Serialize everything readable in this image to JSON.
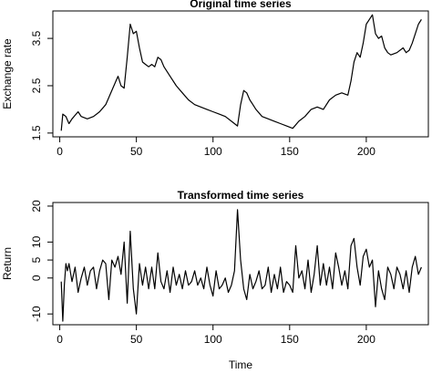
{
  "chart_data": [
    {
      "type": "line",
      "title": "Original time series",
      "ylabel": "Exchange rate",
      "color": "#000000",
      "x": [
        1,
        2,
        4,
        6,
        8,
        12,
        14,
        18,
        22,
        26,
        30,
        34,
        38,
        40,
        42,
        44,
        46,
        48,
        50,
        52,
        54,
        56,
        58,
        60,
        62,
        64,
        66,
        68,
        72,
        76,
        80,
        84,
        88,
        92,
        96,
        100,
        104,
        108,
        112,
        116,
        118,
        120,
        122,
        124,
        126,
        128,
        132,
        136,
        140,
        144,
        148,
        152,
        156,
        160,
        164,
        168,
        172,
        176,
        180,
        184,
        188,
        190,
        192,
        194,
        196,
        198,
        200,
        202,
        204,
        206,
        208,
        210,
        212,
        214,
        216,
        220,
        224,
        226,
        228,
        230,
        232,
        234,
        236
      ],
      "values": [
        1.55,
        1.9,
        1.85,
        1.7,
        1.8,
        1.95,
        1.85,
        1.8,
        1.85,
        1.95,
        2.1,
        2.4,
        2.7,
        2.5,
        2.45,
        3.1,
        3.8,
        3.6,
        3.65,
        3.3,
        3.0,
        2.95,
        2.9,
        2.95,
        2.9,
        3.1,
        3.05,
        2.9,
        2.7,
        2.5,
        2.35,
        2.2,
        2.1,
        2.05,
        2.0,
        1.95,
        1.9,
        1.85,
        1.75,
        1.65,
        2.1,
        2.4,
        2.35,
        2.2,
        2.1,
        2.0,
        1.85,
        1.8,
        1.75,
        1.7,
        1.65,
        1.6,
        1.75,
        1.85,
        2.0,
        2.05,
        2.0,
        2.2,
        2.3,
        2.35,
        2.3,
        2.6,
        3.0,
        3.2,
        3.1,
        3.4,
        3.8,
        3.9,
        4.0,
        3.6,
        3.5,
        3.55,
        3.3,
        3.2,
        3.15,
        3.2,
        3.3,
        3.2,
        3.25,
        3.4,
        3.6,
        3.8,
        3.9
      ],
      "xlim": [
        -4.5,
        240.5
      ],
      "xticks": [
        0,
        50,
        100,
        150,
        200
      ],
      "ylim": [
        1.42,
        4.08
      ],
      "yticks": [
        1.5,
        2.5,
        3.5
      ]
    },
    {
      "type": "line",
      "title": "Transformed time series",
      "xlabel": "Time",
      "ylabel": "Return",
      "color": "#000000",
      "x": [
        1,
        2,
        3,
        4,
        5,
        6,
        8,
        10,
        12,
        14,
        16,
        18,
        20,
        22,
        24,
        26,
        28,
        30,
        32,
        34,
        36,
        38,
        40,
        42,
        44,
        46,
        48,
        50,
        52,
        54,
        56,
        58,
        60,
        62,
        64,
        66,
        68,
        70,
        72,
        74,
        76,
        78,
        80,
        82,
        84,
        86,
        88,
        90,
        92,
        94,
        96,
        98,
        100,
        102,
        104,
        106,
        108,
        110,
        112,
        114,
        116,
        118,
        120,
        122,
        124,
        126,
        128,
        130,
        132,
        134,
        136,
        138,
        140,
        142,
        144,
        146,
        148,
        150,
        152,
        154,
        156,
        158,
        160,
        162,
        164,
        166,
        168,
        170,
        172,
        174,
        176,
        178,
        180,
        182,
        184,
        186,
        188,
        190,
        192,
        194,
        196,
        198,
        200,
        202,
        204,
        206,
        208,
        210,
        212,
        214,
        216,
        218,
        220,
        222,
        224,
        226,
        228,
        230,
        232,
        234,
        236
      ],
      "values": [
        -1,
        -12,
        -2,
        4,
        2,
        4,
        -1,
        3,
        -4,
        0,
        3,
        -2,
        2,
        3,
        -3,
        2,
        5,
        4,
        -6,
        5,
        3,
        6,
        1,
        10,
        -7,
        13,
        -3,
        -10,
        4,
        -2,
        3,
        -3,
        3,
        -3,
        7,
        -1,
        -3,
        2,
        -4,
        3,
        -2,
        1,
        -3,
        2,
        -2,
        -1,
        2,
        -2,
        0,
        -3,
        3,
        -2,
        -5,
        2,
        -3,
        -2,
        0,
        -4,
        -2,
        2,
        19,
        5,
        -3,
        -6,
        1,
        -3,
        -1,
        2,
        -3,
        -2,
        3,
        -4,
        1,
        -3,
        3,
        -4,
        -1,
        -2,
        -4,
        9,
        0,
        2,
        -3,
        5,
        -4,
        1,
        9,
        -2,
        4,
        -2,
        3,
        -3,
        7,
        3,
        -2,
        2,
        -3,
        9,
        11,
        3,
        -2,
        6,
        8,
        3,
        5,
        -8,
        2,
        -3,
        -6,
        3,
        1,
        -3,
        3,
        1,
        -3,
        2,
        -4,
        3,
        6,
        1,
        3
      ],
      "xlim": [
        -4.5,
        240.5
      ],
      "xticks": [
        0,
        50,
        100,
        150,
        200
      ],
      "ylim": [
        -13,
        21
      ],
      "yticks": [
        -10,
        0,
        5,
        10,
        20
      ]
    }
  ]
}
